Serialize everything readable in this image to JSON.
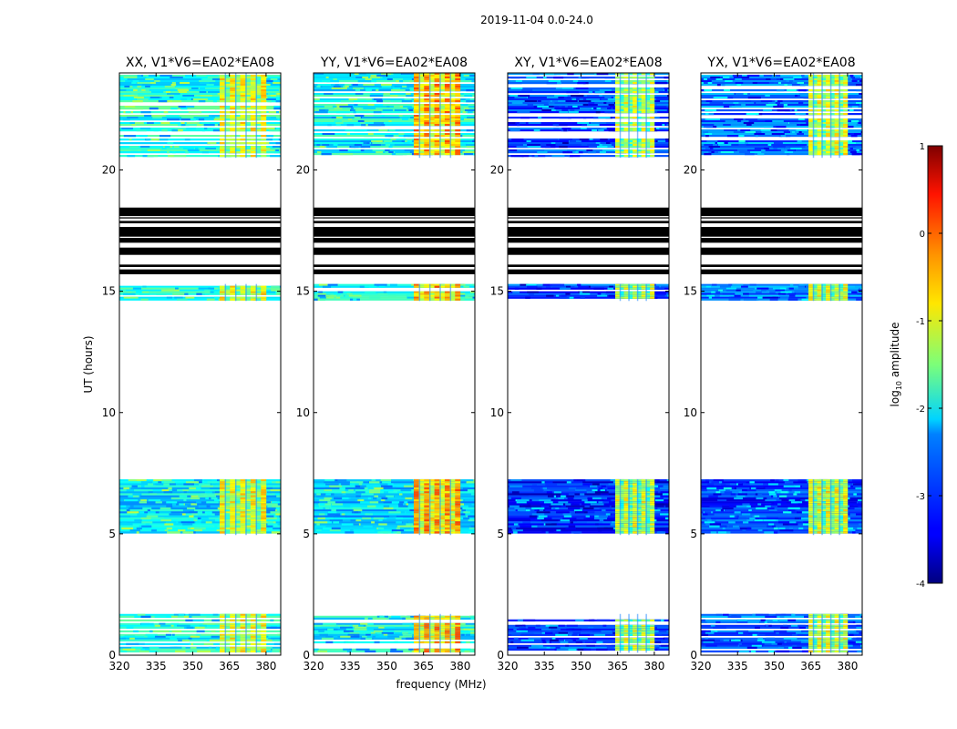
{
  "figure": {
    "suptitle": "2019-11-04 0.0-24.0",
    "xlabel": "frequency (MHz)",
    "ylabel": "UT (hours)"
  },
  "chart_data": {
    "type": "heatmap",
    "suptitle": "2019-11-04 0.0-24.0",
    "xlabel": "frequency (MHz)",
    "ylabel": "UT (hours)",
    "xlim": [
      320,
      386
    ],
    "ylim": [
      0,
      24
    ],
    "xticks": [
      320,
      335,
      350,
      365,
      380
    ],
    "yticks": [
      0,
      5,
      10,
      15,
      20
    ],
    "colormap": "jet",
    "panels": [
      {
        "title": "XX, V1*V6=EA02*EA08",
        "polarization": "XX",
        "rfi_level": 0.62,
        "base_level": -2.0
      },
      {
        "title": "YY, V1*V6=EA02*EA08",
        "polarization": "YY",
        "rfi_level": 0.72,
        "base_level": -2.1
      },
      {
        "title": "XY, V1*V6=EA02*EA08",
        "polarization": "XY",
        "rfi_level": 0.58,
        "base_level": -3.0
      },
      {
        "title": "YX, V1*V6=EA02*EA08",
        "polarization": "YX",
        "rfi_level": 0.6,
        "base_level": -2.8
      }
    ],
    "rfi_band_mhz": [
      361,
      380
    ],
    "rfi_band_mhz_crosspol": [
      364,
      380
    ],
    "data_blocks_ut": [
      {
        "start": 0.1,
        "end": 1.7,
        "kind": "striped"
      },
      {
        "start": 4.95,
        "end": 7.25,
        "kind": "dense"
      },
      {
        "start": 14.6,
        "end": 15.3,
        "kind": "striped"
      },
      {
        "start": 20.5,
        "end": 24.0,
        "kind": "striped"
      }
    ],
    "flagged_blocks_ut": [
      {
        "start": 15.7,
        "end": 15.9
      },
      {
        "start": 16.0,
        "end": 16.1
      },
      {
        "start": 16.5,
        "end": 16.8
      },
      {
        "start": 17.0,
        "end": 17.2
      },
      {
        "start": 17.25,
        "end": 17.65
      },
      {
        "start": 17.8,
        "end": 17.9
      },
      {
        "start": 18.0,
        "end": 18.05
      },
      {
        "start": 18.1,
        "end": 18.45
      }
    ],
    "colorbar": {
      "label": "log10 amplitude",
      "label_main": "log",
      "label_sub": "10",
      "label_rest": " amplitude",
      "range": [
        -4,
        1
      ],
      "ticks": [
        -4,
        -3,
        -2,
        -1,
        0,
        1
      ]
    }
  }
}
